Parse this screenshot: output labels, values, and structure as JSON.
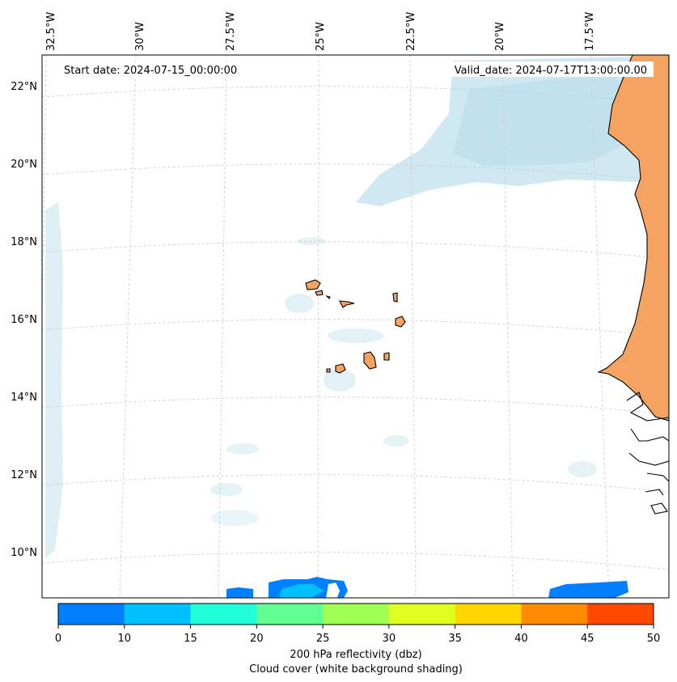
{
  "map": {
    "start_label": "Start date: 2024-07-15_00:00:00",
    "valid_label": "Valid_date: 2024-07-17T13:00:00.00",
    "lon_labels": [
      "32.5°W",
      "30°W",
      "27.5°W",
      "25°W",
      "22.5°W",
      "20°W",
      "17.5°W"
    ],
    "lat_labels": [
      "22°N",
      "20°N",
      "18°N",
      "16°N",
      "14°N",
      "12°N",
      "10°N"
    ],
    "colors": {
      "land": "#f4a460",
      "cloud": "#a9d6e5",
      "coast": "#000000",
      "grid": "#c8c8c8",
      "echo_blue": "#0080ff",
      "echo_cyan": "#00c0ff"
    }
  },
  "colorbar": {
    "title": "200 hPa reflectivity (dbz)",
    "subtitle": "Cloud cover (white background shading)",
    "ticks": [
      "0",
      "10",
      "15",
      "20",
      "25",
      "30",
      "35",
      "40",
      "45",
      "50"
    ],
    "colors": [
      "#0080ff",
      "#00c0ff",
      "#20ffd8",
      "#60ff90",
      "#a0ff50",
      "#e0ff20",
      "#ffd700",
      "#ff8c00",
      "#ff4800"
    ]
  }
}
